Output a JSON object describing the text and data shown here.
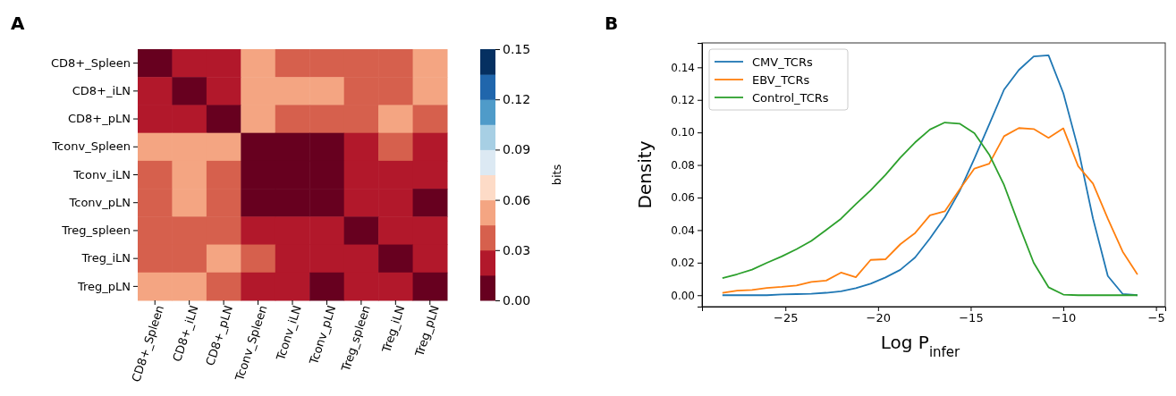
{
  "chart_data": [
    {
      "type": "heatmap",
      "annotations": [
        "A"
      ],
      "categories": [
        "CD8+_Spleen",
        "CD8+_iLN",
        "CD8+_pLN",
        "Tconv_Spleen",
        "Tconv_iLN",
        "Tconv_pLN",
        "Treg_spleen",
        "Treg_iLN",
        "Treg_pLN"
      ],
      "y_categories": [
        "CD8+_Spleen",
        "CD8+_iLN",
        "CD8+_pLN",
        "Tconv_Spleen",
        "Tconv_iLN",
        "Tconv_pLN",
        "Treg_spleen",
        "Treg_iLN",
        "Treg_pLN"
      ],
      "cells": [
        [
          0.0075,
          0.0225,
          0.0225,
          0.0525,
          0.0375,
          0.0375,
          0.0375,
          0.0375,
          0.0525
        ],
        [
          0.0225,
          0.0075,
          0.0225,
          0.0525,
          0.0525,
          0.0525,
          0.0375,
          0.0375,
          0.0525
        ],
        [
          0.0225,
          0.0225,
          0.0075,
          0.0525,
          0.0375,
          0.0375,
          0.0375,
          0.0525,
          0.0375
        ],
        [
          0.0525,
          0.0525,
          0.0525,
          0.0075,
          0.0075,
          0.0075,
          0.0225,
          0.0375,
          0.0225
        ],
        [
          0.0375,
          0.0525,
          0.0375,
          0.0075,
          0.0075,
          0.0075,
          0.0225,
          0.0225,
          0.0225
        ],
        [
          0.0375,
          0.0525,
          0.0375,
          0.0075,
          0.0075,
          0.0075,
          0.0225,
          0.0225,
          0.0075
        ],
        [
          0.0375,
          0.0375,
          0.0375,
          0.0225,
          0.0225,
          0.0225,
          0.0075,
          0.0225,
          0.0225
        ],
        [
          0.0375,
          0.0375,
          0.0525,
          0.0375,
          0.0225,
          0.0225,
          0.0225,
          0.0075,
          0.0225
        ],
        [
          0.0525,
          0.0525,
          0.0375,
          0.0225,
          0.0225,
          0.0075,
          0.0225,
          0.0225,
          0.0075
        ]
      ],
      "clim": [
        0,
        0.15
      ],
      "cticks": [
        {
          "value": 0,
          "label": "0.00"
        },
        {
          "value": 0.03,
          "label": "0.03"
        },
        {
          "value": 0.06,
          "label": "0.06"
        },
        {
          "value": 0.09,
          "label": "0.09"
        },
        {
          "value": 0.12,
          "label": "0.12"
        },
        {
          "value": 0.15,
          "label": "0.15"
        }
      ],
      "clabel": "bits"
    },
    {
      "type": "line",
      "annotations": [
        "B"
      ],
      "xlabel": "Log P$_{infer}$",
      "ylabel": "Density",
      "legend": "top left",
      "x": [
        -28.4,
        -27.6,
        -26.8,
        -26.0,
        -25.2,
        -24.4,
        -23.6,
        -22.8,
        -22.0,
        -21.2,
        -20.4,
        -19.6,
        -18.8,
        -18.0,
        -17.2,
        -16.4,
        -15.6,
        -14.8,
        -14.0,
        -13.2,
        -12.4,
        -11.6,
        -10.8,
        -10.0,
        -9.2,
        -8.4,
        -7.6,
        -6.8,
        -6.0
      ],
      "series": [
        {
          "name": "CMV_TCRs",
          "color": "#1f77b4",
          "values": [
            0.0,
            0.0,
            0.0,
            0.0,
            0.0005,
            0.0007,
            0.0009,
            0.0015,
            0.0024,
            0.0043,
            0.0071,
            0.0109,
            0.0156,
            0.0232,
            0.0349,
            0.0478,
            0.0639,
            0.084,
            0.105,
            0.1263,
            0.1384,
            0.1467,
            0.1474,
            0.1241,
            0.09,
            0.0471,
            0.0118,
            0.0008,
            0.0
          ]
        },
        {
          "name": "EBV_TCRs",
          "color": "#ff7f0e",
          "values": [
            0.0015,
            0.0028,
            0.0032,
            0.0045,
            0.0051,
            0.006,
            0.0082,
            0.009,
            0.0139,
            0.0111,
            0.0217,
            0.0221,
            0.0313,
            0.0382,
            0.0491,
            0.0515,
            0.0649,
            0.0778,
            0.0808,
            0.0977,
            0.1027,
            0.1021,
            0.0967,
            0.1025,
            0.0793,
            0.0686,
            0.047,
            0.0268,
            0.0127
          ]
        },
        {
          "name": "Control_TCRs",
          "color": "#2ca02c",
          "values": [
            0.0105,
            0.0129,
            0.0157,
            0.0199,
            0.0238,
            0.0283,
            0.0334,
            0.0401,
            0.047,
            0.0559,
            0.0645,
            0.0739,
            0.0845,
            0.0939,
            0.1018,
            0.1061,
            0.1054,
            0.0995,
            0.0864,
            0.0677,
            0.0433,
            0.0199,
            0.0049,
            0.0004,
            0.0,
            0.0,
            0.0,
            0.0,
            0.0
          ]
        }
      ],
      "xlim": [
        -29.5,
        -4.5
      ],
      "xticks": [
        {
          "value": -25,
          "label": "−25"
        },
        {
          "value": -20,
          "label": "−20"
        },
        {
          "value": -15,
          "label": "−15"
        },
        {
          "value": -10,
          "label": "−10"
        },
        {
          "value": -5,
          "label": "−5"
        }
      ],
      "ylim": [
        -0.007,
        0.155
      ],
      "yticks": [
        {
          "value": 0,
          "label": "0.00"
        },
        {
          "value": 0.02,
          "label": "0.02"
        },
        {
          "value": 0.04,
          "label": "0.04"
        },
        {
          "value": 0.06,
          "label": "0.06"
        },
        {
          "value": 0.08,
          "label": "0.08"
        },
        {
          "value": 0.1,
          "label": "0.10"
        },
        {
          "value": 0.12,
          "label": "0.12"
        },
        {
          "value": 0.14,
          "label": "0.14"
        }
      ]
    }
  ]
}
